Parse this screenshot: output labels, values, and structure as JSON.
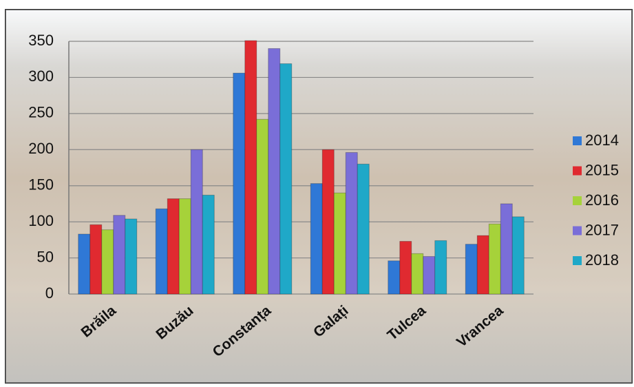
{
  "chart_data": {
    "type": "bar",
    "categories": [
      "Brăila",
      "Buzău",
      "Constanța",
      "Galați",
      "Tulcea",
      "Vrancea"
    ],
    "series": [
      {
        "name": "2014",
        "color": "#2f78d6",
        "values": [
          83,
          118,
          306,
          153,
          46,
          69
        ]
      },
      {
        "name": "2015",
        "color": "#e02a30",
        "values": [
          96,
          132,
          351,
          200,
          73,
          81
        ]
      },
      {
        "name": "2016",
        "color": "#a6d23a",
        "values": [
          89,
          132,
          242,
          140,
          56,
          97
        ]
      },
      {
        "name": "2017",
        "color": "#7a6ed8",
        "values": [
          109,
          200,
          340,
          196,
          52,
          125
        ]
      },
      {
        "name": "2018",
        "color": "#1fa8c8",
        "values": [
          104,
          137,
          319,
          180,
          74,
          107
        ]
      }
    ],
    "ylim": [
      0,
      350
    ],
    "yticks": [
      0,
      50,
      100,
      150,
      200,
      250,
      300,
      350
    ],
    "grid": true,
    "legend": "right"
  }
}
